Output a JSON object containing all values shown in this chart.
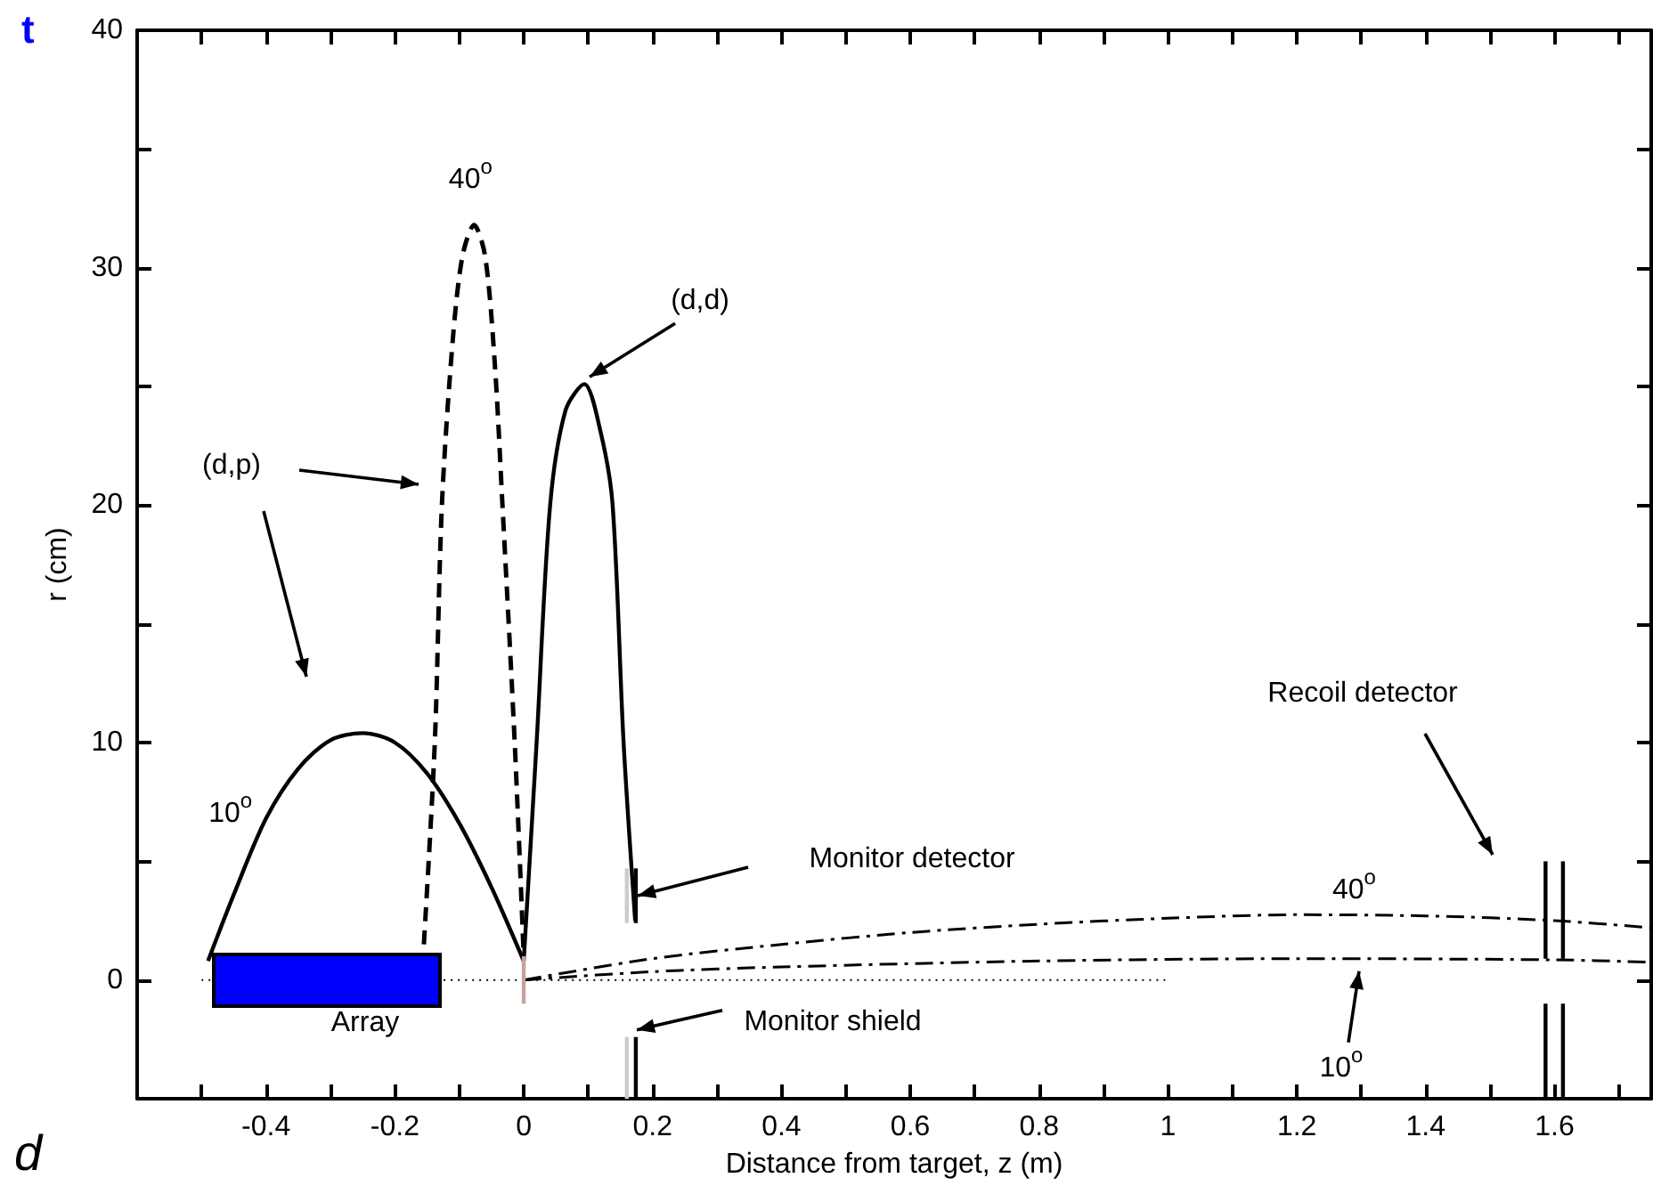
{
  "chart_data": {
    "type": "line",
    "xlabel": "Distance from target, z (m)",
    "ylabel": "r (cm)",
    "xlim": [
      -0.6,
      1.75
    ],
    "ylim": [
      -5,
      40
    ],
    "xticks": [
      {
        "value": -0.5,
        "label": null
      },
      "-0.4",
      {
        "value": -0.3,
        "label": null
      },
      "-0.2",
      {
        "value": -0.1,
        "label": null
      },
      0,
      {
        "value": 0.1,
        "label": null
      },
      0.2,
      {
        "value": 0.3,
        "label": null
      },
      0.4,
      {
        "value": 0.5,
        "label": null
      },
      0.6,
      {
        "value": 0.7,
        "label": null
      },
      0.8,
      {
        "value": 0.9,
        "label": null
      },
      1,
      {
        "value": 1.1,
        "label": null
      },
      1.2,
      {
        "value": 1.3,
        "label": null
      },
      1.4,
      {
        "value": 1.5,
        "label": null
      },
      1.6,
      {
        "value": 1.7,
        "label": null
      }
    ],
    "yticks": [
      0,
      {
        "value": 5,
        "label": null
      },
      10,
      {
        "value": 15,
        "label": null
      },
      20,
      {
        "value": 25,
        "label": null
      },
      30,
      {
        "value": 35,
        "label": null
      },
      40
    ],
    "grid": false,
    "marker": "none",
    "series": [
      {
        "color": "#000000",
        "line_style": "dotted",
        "x": [
          -0.5,
          1.0
        ],
        "values": [
          0,
          0
        ]
      },
      {
        "color": "#000000",
        "line_style": "solid",
        "x": [
          -0.49,
          -0.45,
          -0.4,
          -0.35,
          -0.3,
          -0.25,
          -0.2,
          -0.15,
          -0.1,
          -0.05,
          0
        ],
        "values": [
          0.8,
          3.6,
          6.8,
          8.9,
          10.1,
          10.4,
          10.0,
          8.7,
          6.6,
          3.9,
          0.8
        ]
      },
      {
        "color": "#000000",
        "line_style": "dashed",
        "x": [
          -0.155,
          -0.138,
          -0.127,
          -0.11,
          -0.095,
          -0.077,
          -0.06,
          -0.045,
          -0.033,
          -0.014,
          0
        ],
        "values": [
          1.5,
          10,
          20,
          27,
          30.5,
          31.8,
          30.5,
          26,
          20,
          10,
          1
        ]
      },
      {
        "color": "#000000",
        "line_style": "solid",
        "x": [
          0,
          0.02,
          0.041,
          0.065,
          0.094,
          0.12,
          0.138,
          0.155,
          0.173
        ],
        "values": [
          0.8,
          10,
          20,
          24,
          25.1,
          23,
          20,
          10,
          2.5
        ]
      },
      {
        "color": "#000000",
        "line_style": "dashdot",
        "x": [
          0,
          0.2,
          0.4,
          0.6,
          0.8,
          1.0,
          1.2,
          1.4,
          1.6,
          1.75
        ],
        "values": [
          0,
          0.9,
          1.5,
          2.0,
          2.35,
          2.6,
          2.75,
          2.7,
          2.5,
          2.2
        ]
      },
      {
        "color": "#000000",
        "line_style": "dashdot",
        "x": [
          0,
          0.2,
          0.4,
          0.8,
          1.2,
          1.6,
          1.75
        ],
        "values": [
          0,
          0.35,
          0.55,
          0.8,
          0.9,
          0.85,
          0.75
        ]
      },
      {
        "color": "#c8a0a0",
        "line_style": "solid",
        "x": [
          0,
          0
        ],
        "values": [
          -1,
          1
        ]
      },
      {
        "type": "line",
        "color": "#cccccc",
        "line_style": "solid",
        "x": [
          0.16,
          0.16
        ],
        "values": [
          2.4,
          4.7
        ]
      },
      {
        "type": "line",
        "color": "#000000",
        "line_style": "solid",
        "x": [
          0.174,
          0.174
        ],
        "values": [
          2.4,
          4.7
        ]
      },
      {
        "type": "line",
        "color": "#cccccc",
        "line_style": "solid",
        "x": [
          0.16,
          0.16
        ],
        "values": [
          -5,
          -2.4
        ]
      },
      {
        "type": "line",
        "color": "#000000",
        "line_style": "solid",
        "x": [
          0.174,
          0.174
        ],
        "values": [
          -5,
          -2.4
        ]
      },
      {
        "type": "line",
        "color": "#000000",
        "line_style": "solid",
        "x": [
          1.586,
          1.586
        ],
        "values": [
          0.9,
          5
        ]
      },
      {
        "type": "line",
        "color": "#000000",
        "line_style": "solid",
        "x": [
          1.613,
          1.613
        ],
        "values": [
          0.9,
          5
        ]
      },
      {
        "type": "line",
        "color": "#000000",
        "line_style": "solid",
        "x": [
          1.586,
          1.586
        ],
        "values": [
          -5,
          -1
        ]
      },
      {
        "type": "line",
        "color": "#000000",
        "line_style": "solid",
        "x": [
          1.613,
          1.613
        ],
        "values": [
          -5,
          -1
        ]
      }
    ],
    "annotations": [
      "(d,p)",
      {
        "text": "(d,d)",
        "x": 0.094,
        "y": 25.1
      },
      {
        "text": "40$^{o}$",
        "x": -0.077,
        "y": 31.8
      },
      {
        "text": "10$^{o}$",
        "x": -0.4,
        "y": 6.8
      },
      "Monitor detector",
      {
        "text": "Monitor shield",
        "x": 0.17,
        "y": -2.4
      },
      "Recoil detector",
      {
        "text": "40$^{o}$",
        "x": 1.3,
        "y": 2.75
      },
      {
        "text": "10$^{o}$",
        "x": 1.28,
        "y": 0.9
      },
      "Array",
      "t",
      "d"
    ]
  }
}
